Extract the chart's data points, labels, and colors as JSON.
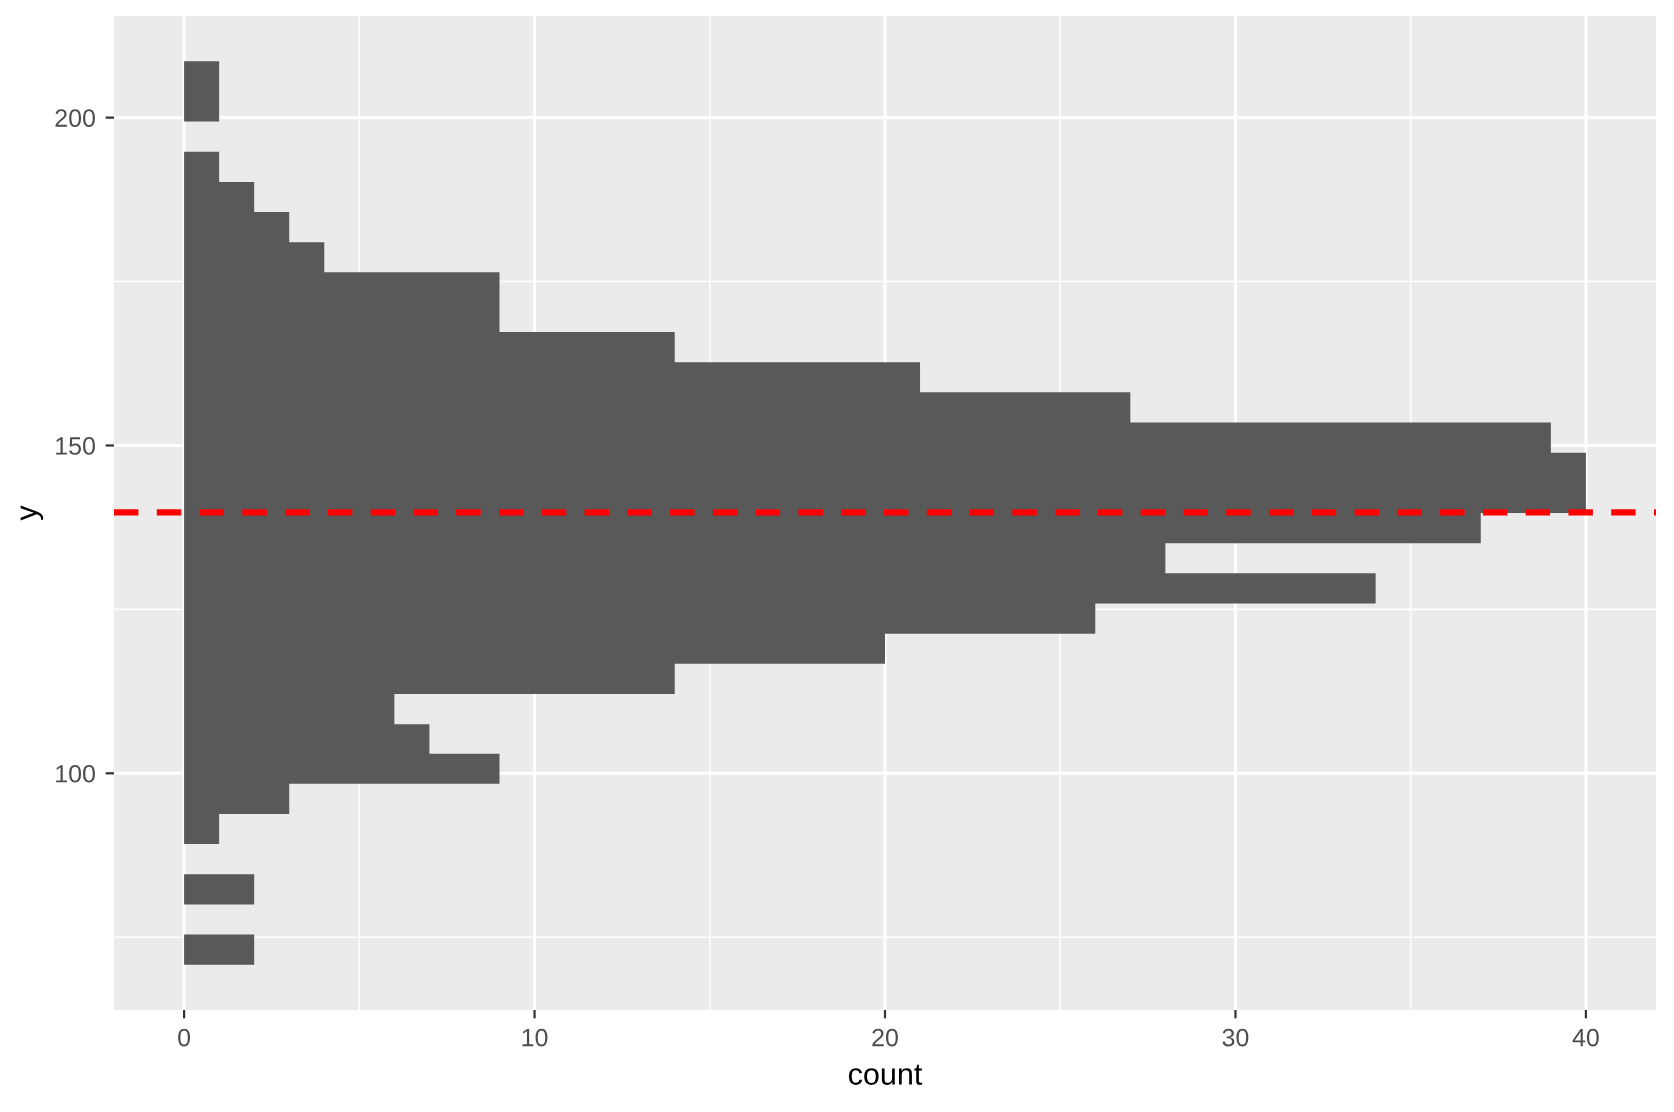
{
  "chart_data": {
    "type": "histogram",
    "orientation": "horizontal",
    "xlabel": "count",
    "ylabel": "y",
    "bins": [
      70.8,
      75.4,
      80.0,
      84.6,
      89.2,
      93.8,
      98.4,
      103.0,
      107.5,
      112.1,
      116.7,
      121.3,
      125.9,
      130.5,
      135.1,
      139.7,
      144.3,
      148.9,
      153.5,
      158.1,
      162.7,
      167.3,
      171.8,
      176.4,
      181.0,
      185.6,
      190.2,
      194.8,
      199.4,
      204.0,
      208.6
    ],
    "values": [
      2,
      0,
      2,
      0,
      1,
      3,
      9,
      7,
      6,
      14,
      20,
      26,
      34,
      28,
      37,
      40,
      40,
      39,
      27,
      21,
      14,
      9,
      9,
      4,
      3,
      2,
      1,
      0,
      1,
      1
    ],
    "color": "#595959",
    "xlim": [
      -2.0,
      42.0
    ],
    "xticks": [
      0,
      {
        "value": 5,
        "label": null
      },
      10,
      {
        "value": 15,
        "label": null
      },
      20,
      {
        "value": 25,
        "label": null
      },
      30,
      {
        "value": 35,
        "label": null
      },
      40
    ],
    "ylim": [
      63.9,
      215.5
    ],
    "yticks": [
      {
        "value": 75,
        "label": null
      },
      100,
      {
        "value": 125,
        "label": null
      },
      150,
      {
        "value": 175,
        "label": null
      },
      200
    ],
    "grid": true,
    "ref_lines": [
      {
        "axis": "y",
        "value": 139.8,
        "color": "#ff0000",
        "line_style": "dashed"
      }
    ]
  }
}
